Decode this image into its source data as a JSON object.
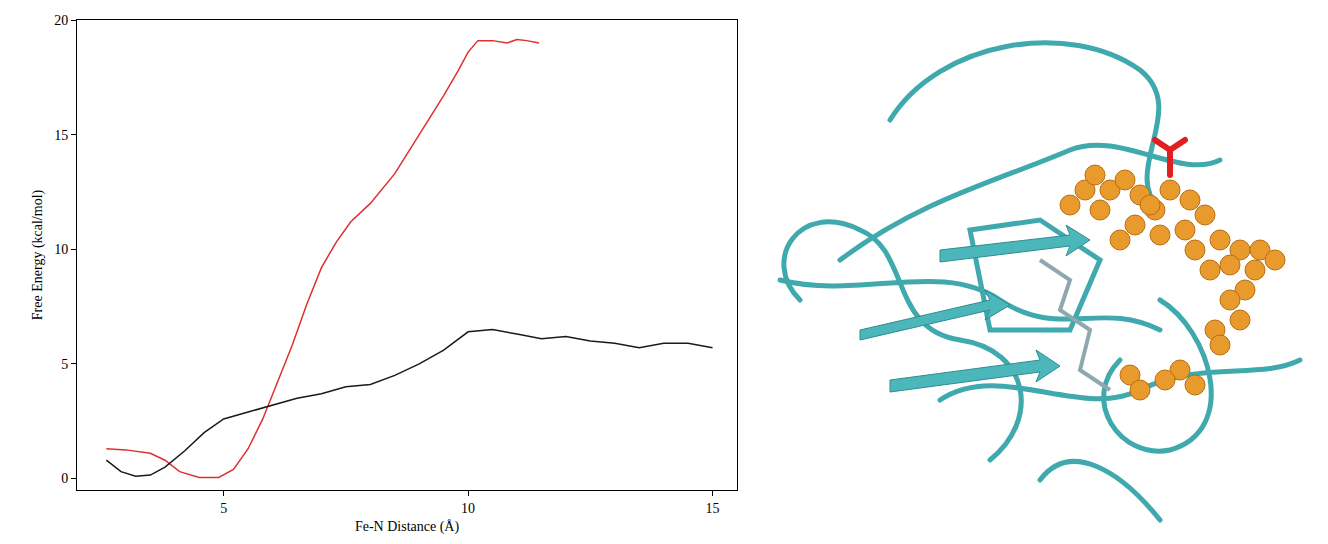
{
  "chart_data": {
    "type": "line",
    "x_label": "Fe-N Distance (Å)",
    "y_label": "Free Energy (kcal/mol)",
    "xlim": [
      2,
      15.5
    ],
    "ylim": [
      -0.5,
      20
    ],
    "xticks": [
      5,
      10,
      15
    ],
    "yticks": [
      0,
      5,
      10,
      15,
      20
    ],
    "grid": false,
    "series": [
      {
        "color": "#e02f2f",
        "x": [
          2.6,
          3.0,
          3.5,
          3.8,
          4.1,
          4.5,
          4.9,
          5.2,
          5.5,
          5.8,
          6.1,
          6.4,
          6.7,
          7.0,
          7.3,
          7.6,
          8.0,
          8.5,
          9.0,
          9.5,
          9.8,
          10.0,
          10.2,
          10.5,
          10.8,
          11.0,
          11.2,
          11.45
        ],
        "values": [
          1.3,
          1.25,
          1.1,
          0.8,
          0.3,
          0.05,
          0.05,
          0.4,
          1.3,
          2.6,
          4.2,
          5.8,
          7.6,
          9.2,
          10.3,
          11.2,
          12.0,
          13.3,
          15.0,
          16.7,
          17.8,
          18.6,
          19.1,
          19.1,
          19.0,
          19.15,
          19.1,
          19.0
        ]
      },
      {
        "color": "#1a1a1a",
        "x": [
          2.6,
          2.9,
          3.2,
          3.5,
          3.8,
          4.2,
          4.6,
          5.0,
          5.5,
          6.0,
          6.5,
          7.0,
          7.5,
          8.0,
          8.5,
          9.0,
          9.5,
          10.0,
          10.5,
          11.0,
          11.5,
          12.0,
          12.5,
          13.0,
          13.5,
          14.0,
          14.5,
          15.0
        ],
        "values": [
          0.8,
          0.3,
          0.1,
          0.15,
          0.5,
          1.2,
          2.0,
          2.6,
          2.9,
          3.2,
          3.5,
          3.7,
          4.0,
          4.1,
          4.5,
          5.0,
          5.6,
          6.4,
          6.5,
          6.3,
          6.1,
          6.2,
          6.0,
          5.9,
          5.7,
          5.9,
          5.9,
          5.7
        ]
      }
    ]
  }
}
